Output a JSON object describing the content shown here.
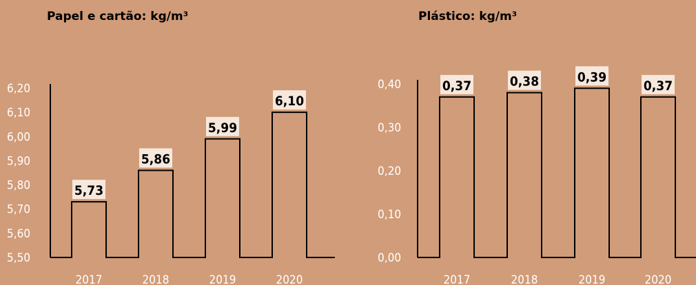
{
  "chart_data": [
    {
      "type": "bar",
      "title": "Papel e cartão: kg/m³",
      "categories": [
        "2017",
        "2018",
        "2019",
        "2020"
      ],
      "values": [
        5.73,
        5.86,
        5.99,
        6.1
      ],
      "value_labels": [
        "5,73",
        "5,86",
        "5,99",
        "6,10"
      ],
      "yticks": [
        "5,50",
        "5,60",
        "5,70",
        "5,80",
        "5,90",
        "6,00",
        "6,10",
        "6,20"
      ],
      "ylim": [
        5.5,
        6.2
      ],
      "grid": false,
      "colors": {
        "text": "#ffffff",
        "label_bg": "#f6e8dd",
        "line": "#000000"
      }
    },
    {
      "type": "bar",
      "title": "Plástico: kg/m³",
      "categories": [
        "2017",
        "2018",
        "2019",
        "2020"
      ],
      "values": [
        0.37,
        0.38,
        0.39,
        0.37
      ],
      "value_labels": [
        "0,37",
        "0,38",
        "0,39",
        "0,37"
      ],
      "yticks": [
        "0,00",
        "0,10",
        "0,20",
        "0,30",
        "0,40"
      ],
      "ylim": [
        0.0,
        0.4
      ],
      "grid": false,
      "colors": {
        "text": "#ffffff",
        "label_bg": "#f6e8dd",
        "line": "#000000"
      }
    }
  ],
  "background_color": "#d19c79"
}
